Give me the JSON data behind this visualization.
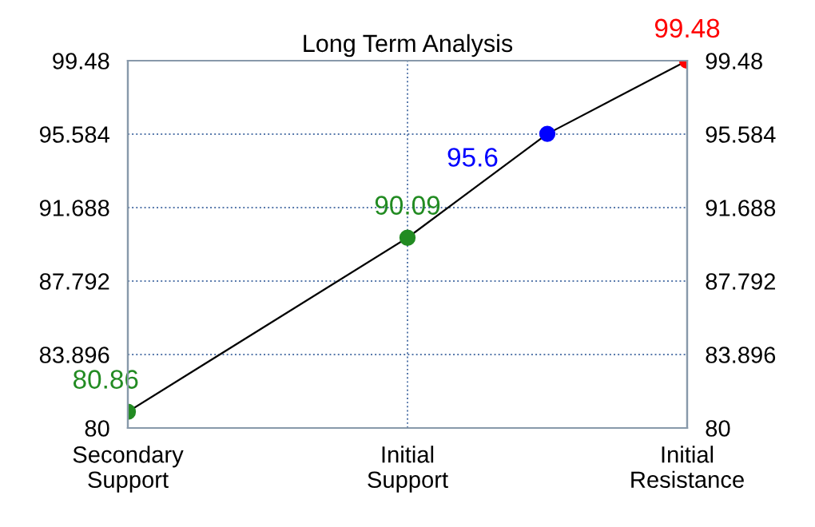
{
  "chart_data": {
    "type": "line",
    "title": "Long Term Analysis",
    "categories": [
      "Secondary\nSupport",
      null,
      "Initial\nSupport",
      null,
      "Initial\nResistance"
    ],
    "series": [
      {
        "color": "#000000",
        "colors": [
          "#228b22",
          null,
          "#228b22",
          "#0000ff",
          "#ff0000"
        ],
        "values": [
          80.86,
          null,
          90.09,
          95.6,
          99.48
        ],
        "value_labels": [
          "80.86",
          null,
          "90.09",
          "95.6",
          "99.48"
        ]
      }
    ],
    "ylim": [
      80,
      99.48
    ],
    "yticks": [
      80,
      83.896,
      87.792,
      91.688,
      95.584,
      99.48
    ],
    "y2lim": [
      80,
      99.48
    ],
    "y2ticks": [
      80,
      83.896,
      87.792,
      91.688,
      95.584,
      99.48
    ],
    "grid": true,
    "marker": "circle",
    "line_style": "solid"
  }
}
